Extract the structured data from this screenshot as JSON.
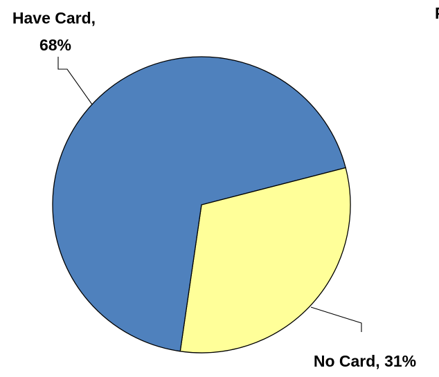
{
  "chart_data": {
    "type": "pie",
    "slices": [
      {
        "label_lines": [
          "Have Card,",
          "68%"
        ],
        "value": 68,
        "color": "#4f81bd"
      },
      {
        "label_lines": [
          "No Card, 31%"
        ],
        "value": 31,
        "color": "#ffff99"
      }
    ],
    "clipped_text": "P"
  }
}
